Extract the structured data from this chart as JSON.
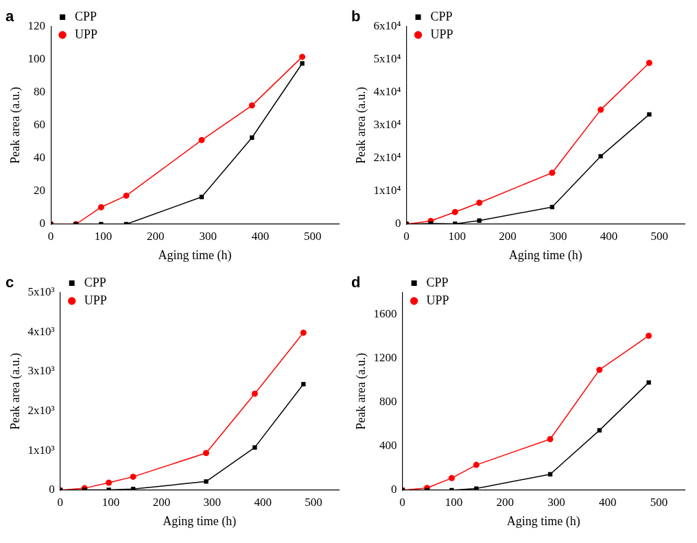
{
  "chart_data": [
    {
      "type": "line",
      "title": "a",
      "xlabel": "Aging time (h)",
      "ylabel": "Peak area (a.u.)",
      "x": [
        0,
        48,
        96,
        144,
        288,
        384,
        480
      ],
      "xlim": [
        0,
        550
      ],
      "xticks": [
        0,
        100,
        200,
        300,
        400,
        500
      ],
      "ylim": [
        0,
        120
      ],
      "yticks": [
        0,
        20,
        40,
        60,
        80,
        100,
        120
      ],
      "legend": "top left",
      "grid": false,
      "series": [
        {
          "name": "CPP",
          "color": "#000000",
          "marker": "square",
          "values": [
            0,
            0,
            0,
            0,
            16.5,
            52.5,
            97.5
          ]
        },
        {
          "name": "UPP",
          "color": "#ff0000",
          "marker": "circle",
          "values": [
            0,
            0,
            10.3,
            17.3,
            51,
            72,
            101.5
          ]
        }
      ]
    },
    {
      "type": "line",
      "title": "b",
      "xlabel": "Aging time (h)",
      "ylabel": "Peak area (a.u.)",
      "x": [
        0,
        48,
        96,
        144,
        288,
        384,
        480
      ],
      "xlim": [
        0,
        550
      ],
      "xticks": [
        0,
        100,
        200,
        300,
        400,
        500
      ],
      "ylim": [
        0,
        60000
      ],
      "yticks": [
        0,
        {
          "value": 10000,
          "label": "1x10⁴"
        },
        {
          "value": 20000,
          "label": "2x10⁴"
        },
        {
          "value": 30000,
          "label": "3x10⁴"
        },
        {
          "value": 40000,
          "label": "4x10⁴"
        },
        {
          "value": 50000,
          "label": "5x10⁴"
        },
        {
          "value": 60000,
          "label": "6x10⁴"
        }
      ],
      "legend": "top left",
      "grid": false,
      "series": [
        {
          "name": "CPP",
          "color": "#000000",
          "marker": "square",
          "values": [
            0,
            200,
            100,
            1100,
            5200,
            20600,
            33300
          ]
        },
        {
          "name": "UPP",
          "color": "#ff0000",
          "marker": "circle",
          "values": [
            0,
            1000,
            3700,
            6500,
            15600,
            34700,
            48900
          ]
        }
      ]
    },
    {
      "type": "line",
      "title": "c",
      "xlabel": "Aging time (h)",
      "ylabel": "Peak area (a.u.)",
      "x": [
        0,
        48,
        96,
        144,
        288,
        384,
        480
      ],
      "xlim": [
        0,
        550
      ],
      "xticks": [
        0,
        100,
        200,
        300,
        400,
        500
      ],
      "ylim": [
        0,
        5000
      ],
      "yticks": [
        0,
        {
          "value": 1000,
          "label": "1x10³"
        },
        {
          "value": 2000,
          "label": "2x10³"
        },
        {
          "value": 3000,
          "label": "3x10³"
        },
        {
          "value": 4000,
          "label": "4x10³"
        },
        {
          "value": 5000,
          "label": "5x10³"
        }
      ],
      "legend": "top left",
      "grid": false,
      "series": [
        {
          "name": "CPP",
          "color": "#000000",
          "marker": "square",
          "values": [
            0,
            10,
            10,
            30,
            220,
            1080,
            2680
          ]
        },
        {
          "name": "UPP",
          "color": "#ff0000",
          "marker": "circle",
          "values": [
            0,
            50,
            190,
            340,
            940,
            2440,
            3980
          ]
        }
      ]
    },
    {
      "type": "line",
      "title": "d",
      "xlabel": "Aging time (h)",
      "ylabel": "Peak area (a.u.)",
      "x": [
        0,
        48,
        96,
        144,
        288,
        384,
        480
      ],
      "xlim": [
        0,
        550
      ],
      "xticks": [
        0,
        100,
        200,
        300,
        400,
        500
      ],
      "ylim": [
        0,
        1800
      ],
      "yticks": [
        0,
        400,
        800,
        1200,
        1600
      ],
      "legend": "top left",
      "grid": false,
      "series": [
        {
          "name": "CPP",
          "color": "#000000",
          "marker": "square",
          "values": [
            0,
            0,
            0,
            15,
            145,
            545,
            980
          ]
        },
        {
          "name": "UPP",
          "color": "#ff0000",
          "marker": "circle",
          "values": [
            0,
            20,
            110,
            230,
            465,
            1095,
            1405
          ]
        }
      ]
    }
  ]
}
